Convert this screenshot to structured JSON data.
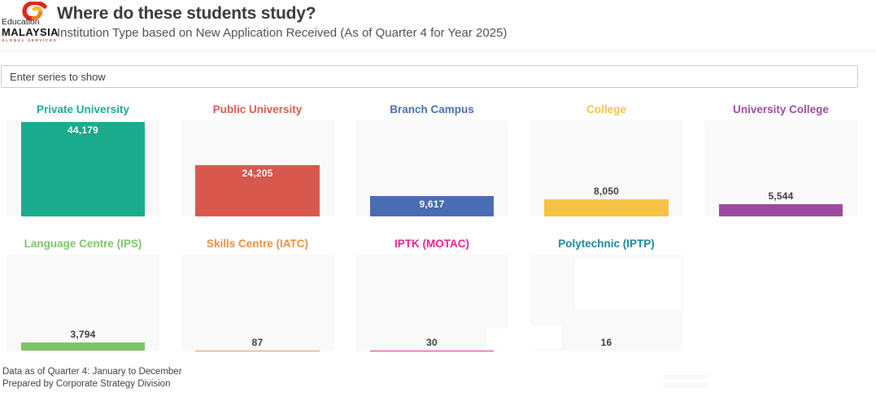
{
  "header": {
    "title": "Where do these students study?",
    "subtitle": "Institution Type based on New Application Received (As of Quarter 4 for Year 2025)",
    "logo": {
      "line1": "Education",
      "line2": "MALAYSIA",
      "line3": "GLOBAL SERVICES",
      "swirl_colors": [
        "#e0271f",
        "#f08021",
        "#f9b816"
      ]
    }
  },
  "controls": {
    "series_input_placeholder": "Enter series to show",
    "series_input_value": ""
  },
  "chart_data": {
    "type": "bar",
    "layout": "small_multiples",
    "title": "Where do these students study?",
    "subtitle": "Institution Type based on New Application Received (As of Quarter 4 for Year 2025)",
    "categories": [
      "Private University",
      "Public University",
      "Branch Campus",
      "College",
      "University College",
      "Language Centre (IPS)",
      "Skills Centre (IATC)",
      "IPTK (MOTAC)",
      "Polytechnic (IPTP)"
    ],
    "values": [
      44179,
      24205,
      9617,
      8050,
      5544,
      3794,
      87,
      30,
      16
    ],
    "value_labels": [
      "44,179",
      "24,205",
      "9,617",
      "8,050",
      "5,544",
      "3,794",
      "87",
      "30",
      "16"
    ],
    "colors": [
      "#1BAB8D",
      "#D9584E",
      "#4A6CB2",
      "#F5C242",
      "#9C4A9E",
      "#7CC368",
      "#EF8C3B",
      "#E9218C",
      "#1786A0"
    ],
    "ylim": [
      0,
      45000
    ],
    "grid": false,
    "legend": false,
    "panel_background": "#f9f9f9"
  },
  "footer": {
    "line1": "Data as of Quarter 4: January to December",
    "line2": "Prepared by Corporate Strategy Division"
  }
}
